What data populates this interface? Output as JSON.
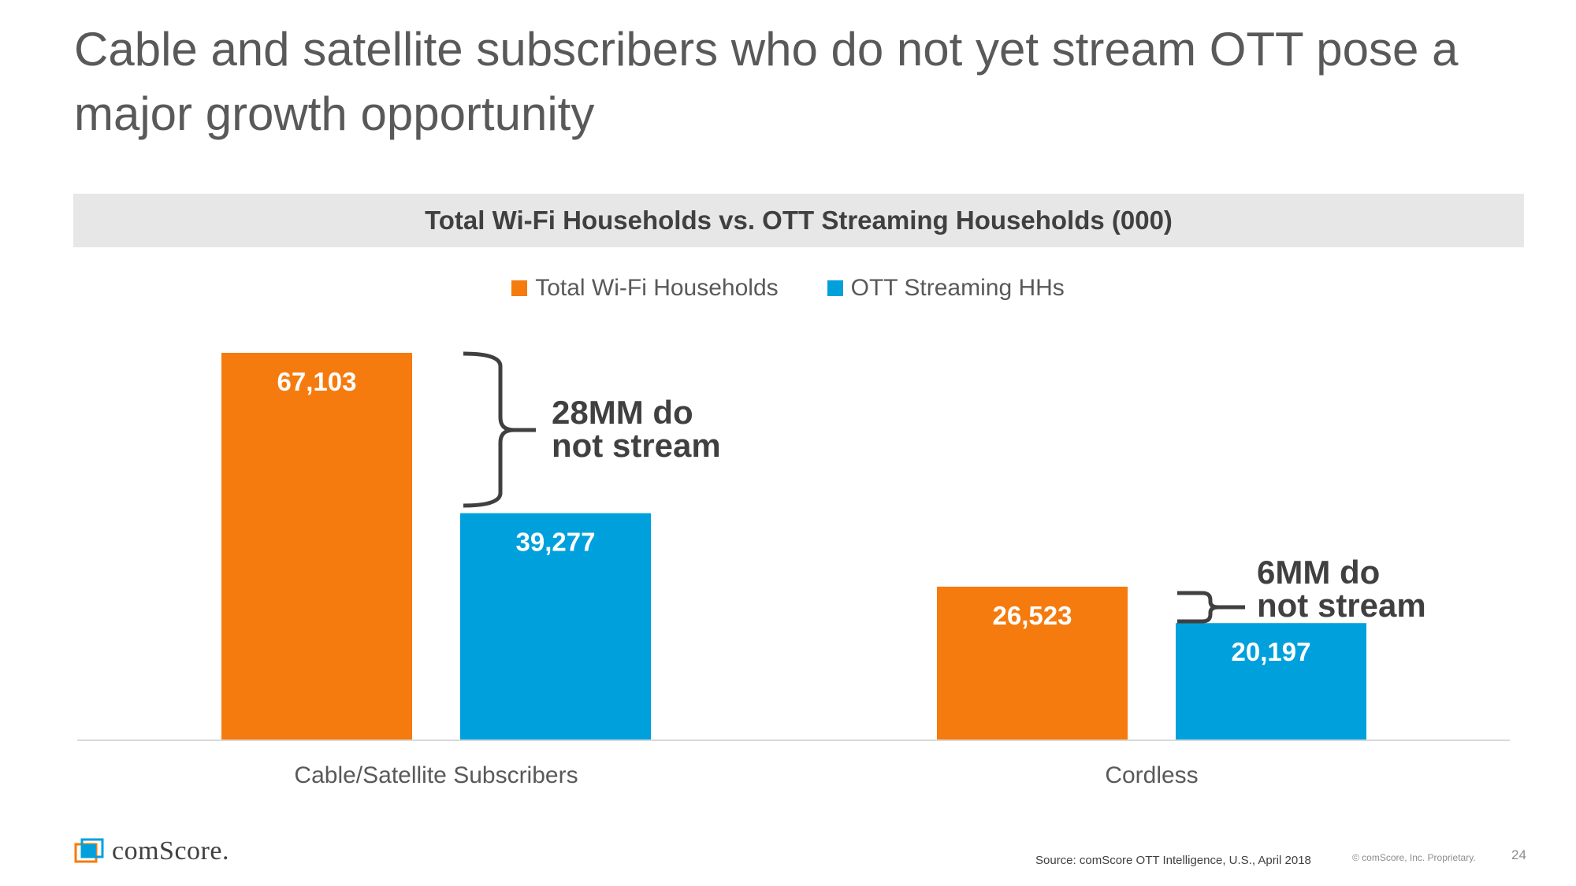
{
  "slide": {
    "title": "Cable and satellite subscribers who do not yet stream OTT pose a major growth opportunity"
  },
  "chart_data": {
    "type": "bar",
    "title": "Total Wi-Fi Households vs. OTT Streaming Households (000)",
    "categories": [
      "Cable/Satellite Subscribers",
      "Cordless"
    ],
    "series": [
      {
        "name": "Total Wi-Fi Households",
        "values": [
          67103,
          26523
        ],
        "labels": [
          "67,103",
          "26,523"
        ],
        "color": "#f57b0e"
      },
      {
        "name": "OTT Streaming HHs",
        "values": [
          39277,
          20197
        ],
        "labels": [
          "39,277",
          "20,197"
        ],
        "color": "#00a0dd"
      }
    ],
    "xlabel": "",
    "ylabel": "",
    "ylim": [
      0,
      67103
    ],
    "grid": false,
    "legend": "top-center",
    "annotations": [
      {
        "line1": "28MM do",
        "line2": "not stream",
        "category": "Cable/Satellite Subscribers"
      },
      {
        "line1": "6MM do",
        "line2": "not stream",
        "category": "Cordless"
      }
    ]
  },
  "footer": {
    "logo_text": "comScore.",
    "source": "Source: comScore OTT Intelligence, U.S., April 2018",
    "copyright": "© comScore, Inc. Proprietary.",
    "page_number": "24"
  }
}
